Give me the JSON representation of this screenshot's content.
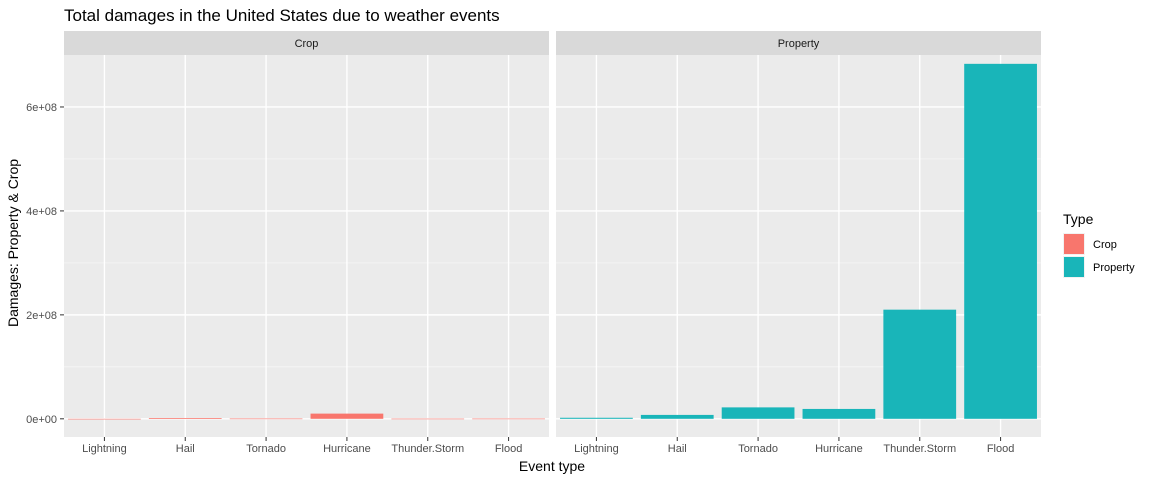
{
  "chart_data": {
    "type": "bar",
    "title": "Total damages in the United States due to weather events",
    "xlabel": "Event type",
    "ylabel": "Damages: Property & Crop",
    "categories": [
      "Lightning",
      "Hail",
      "Tornado",
      "Hurricane",
      "Thunder.Storm",
      "Flood"
    ],
    "ylim": [
      -35000000,
      700000000
    ],
    "yticks": [
      0,
      200000000,
      400000000,
      600000000
    ],
    "ytick_labels": [
      "0e+00",
      "2e+08",
      "4e+08",
      "6e+08"
    ],
    "grid": true,
    "facets": [
      {
        "label": "Crop",
        "series": "Crop"
      },
      {
        "label": "Property",
        "series": "Property"
      }
    ],
    "series": [
      {
        "name": "Crop",
        "color": "#F8766D",
        "values": [
          10000,
          1500000,
          500000,
          10000000,
          300000,
          400000
        ]
      },
      {
        "name": "Property",
        "color": "#19B5B9",
        "values": [
          2000000,
          7500000,
          22000000,
          19000000,
          210000000,
          683000000
        ]
      }
    ],
    "legend": {
      "title": "Type",
      "position": "right",
      "items": [
        {
          "label": "Crop",
          "color": "#F8766D"
        },
        {
          "label": "Property",
          "color": "#19B5B9"
        }
      ]
    }
  }
}
